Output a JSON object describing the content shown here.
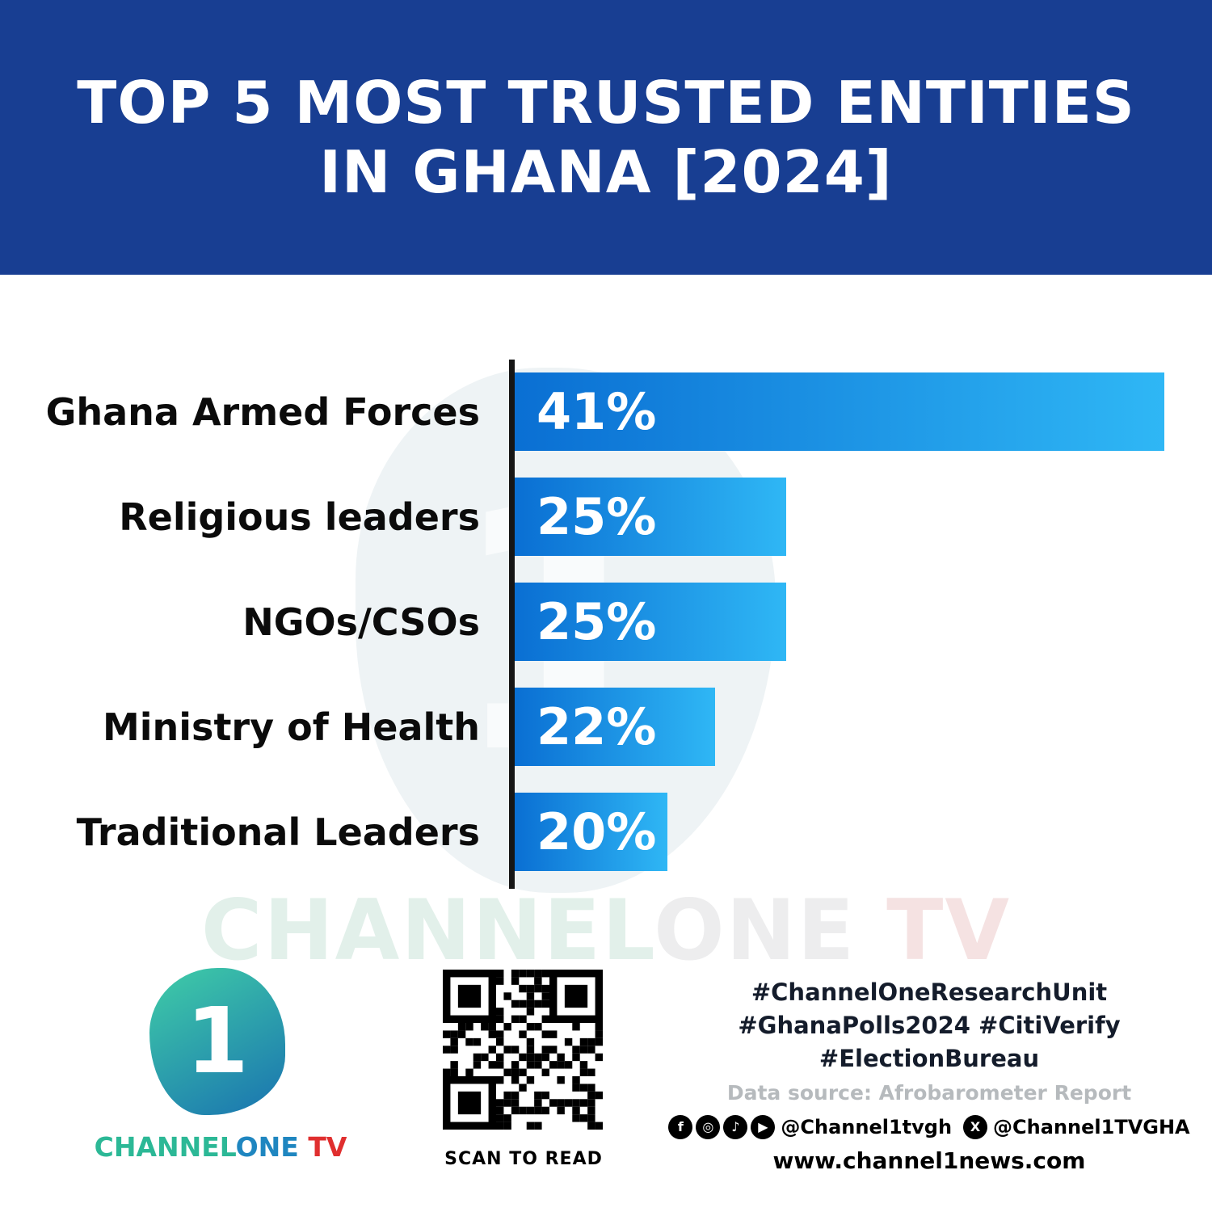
{
  "header": {
    "title_line1": "TOP 5 MOST TRUSTED ENTITIES",
    "title_line2": "IN GHANA [2024]"
  },
  "chart_data": {
    "type": "bar",
    "orientation": "horizontal",
    "title": "TOP 5 MOST TRUSTED ENTITIES IN GHANA [2024]",
    "categories": [
      "Ghana Armed Forces",
      "Religious leaders",
      "NGOs/CSOs",
      "Ministry of Health",
      "Traditional Leaders"
    ],
    "values": [
      41,
      25,
      25,
      22,
      20
    ],
    "value_labels": [
      "41%",
      "25%",
      "25%",
      "22%",
      "20%"
    ],
    "xlabel": "",
    "ylabel": "",
    "xlim": [
      0,
      41
    ],
    "grid": false,
    "legend": false,
    "bar_color_start": "#0a6fd3",
    "bar_color_end": "#2fb7f5"
  },
  "watermark": {
    "part1": "CHANNEL",
    "part2": "ONE",
    "part3": " TV"
  },
  "footer": {
    "brand": {
      "logo_glyph": "1",
      "part_channel": "CHANNEL",
      "part_one": "ONE",
      "part_tv": " TV"
    },
    "qr": {
      "caption": "SCAN TO READ"
    },
    "hashtags": [
      "#ChannelOneResearchUnit",
      "#GhanaPolls2024 #CitiVerify",
      "#ElectionBureau"
    ],
    "source": "Data source: Afrobarometer Report",
    "social": {
      "icons": [
        {
          "name": "facebook-icon",
          "glyph": "f"
        },
        {
          "name": "instagram-icon",
          "glyph": "◎"
        },
        {
          "name": "tiktok-icon",
          "glyph": "♪"
        },
        {
          "name": "youtube-icon",
          "glyph": "▶"
        }
      ],
      "handle1": "@Channel1tvgh",
      "x_icon": {
        "name": "x-icon",
        "glyph": "X"
      },
      "handle2": "@Channel1TVGHA"
    },
    "website": "www.channel1news.com"
  },
  "colors": {
    "header_bg": "#183e92",
    "bar_gradient_start": "#0a6fd3",
    "bar_gradient_end": "#2fb7f5",
    "axis": "#161616",
    "brand_teal": "#2cb896",
    "brand_blue": "#1f86c0",
    "brand_red": "#e02f2f"
  }
}
